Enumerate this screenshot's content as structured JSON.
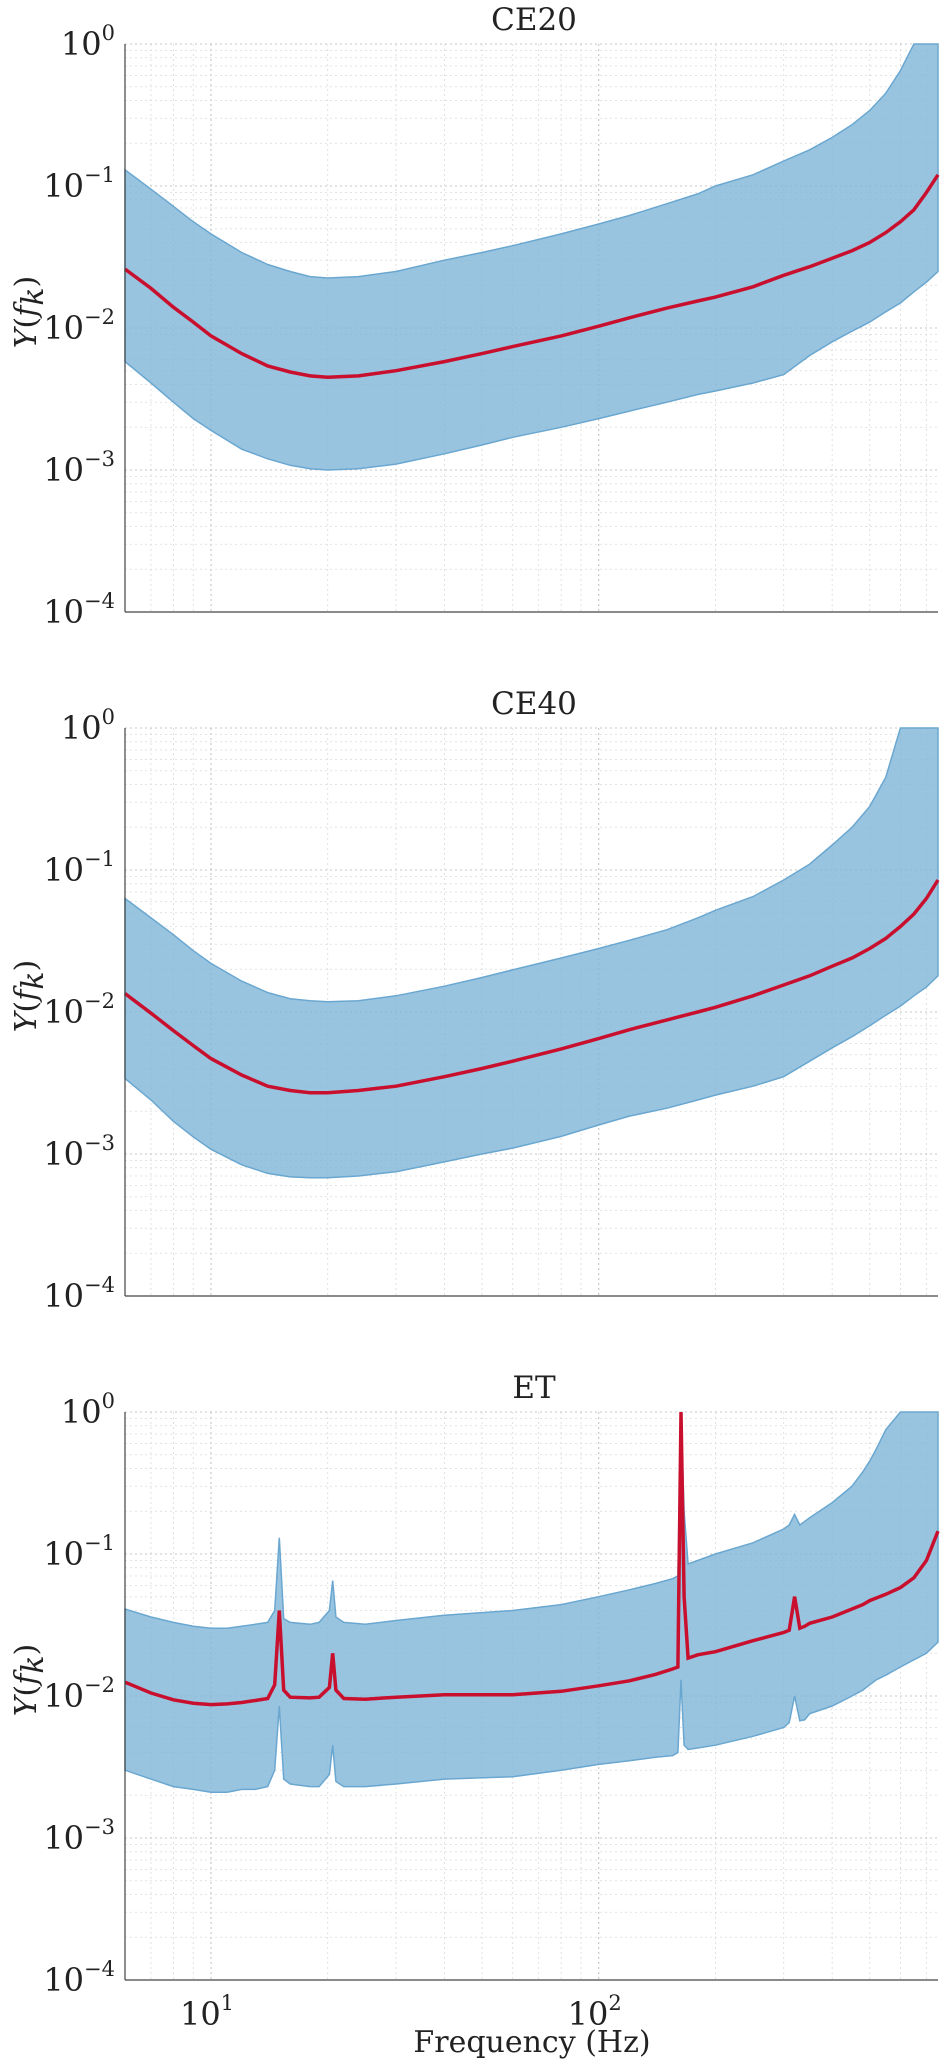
{
  "chart_data": [
    {
      "type": "area",
      "title": "CE20",
      "xlabel": "",
      "ylabel": "Y(f_k)",
      "xscale": "log",
      "yscale": "log",
      "xlim": [
        6,
        750
      ],
      "ylim": [
        0.0001,
        1
      ],
      "grid": true,
      "x_tick_labels": [],
      "y_tick_labels": [
        "10^-4",
        "10^-3",
        "10^-2",
        "10^-1",
        "10^0"
      ],
      "x": [
        6,
        7,
        8,
        9,
        10,
        12,
        14,
        16,
        18,
        20,
        24,
        30,
        40,
        50,
        60,
        80,
        100,
        120,
        150,
        180,
        200,
        250,
        300,
        350,
        400,
        450,
        500,
        550,
        600,
        650,
        700,
        750
      ],
      "series": [
        {
          "role": "median",
          "color": "#c8102e",
          "values": [
            0.026,
            0.019,
            0.014,
            0.011,
            0.0088,
            0.0066,
            0.0054,
            0.0049,
            0.0046,
            0.0045,
            0.0046,
            0.005,
            0.0058,
            0.0066,
            0.0074,
            0.0088,
            0.0103,
            0.0118,
            0.0138,
            0.0155,
            0.0165,
            0.0195,
            0.0235,
            0.027,
            0.031,
            0.035,
            0.04,
            0.047,
            0.056,
            0.068,
            0.09,
            0.12
          ]
        },
        {
          "role": "upper",
          "color": "#7fb5d8",
          "values": [
            0.13,
            0.095,
            0.072,
            0.056,
            0.046,
            0.034,
            0.028,
            0.025,
            0.023,
            0.0225,
            0.023,
            0.025,
            0.03,
            0.034,
            0.038,
            0.046,
            0.054,
            0.062,
            0.075,
            0.088,
            0.1,
            0.12,
            0.15,
            0.18,
            0.22,
            0.27,
            0.34,
            0.45,
            0.65,
            1.0,
            1.0,
            1.0
          ]
        },
        {
          "role": "lower",
          "color": "#7fb5d8",
          "values": [
            0.0058,
            0.0041,
            0.003,
            0.0023,
            0.0019,
            0.0014,
            0.0012,
            0.00108,
            0.00102,
            0.001,
            0.00102,
            0.0011,
            0.0013,
            0.0015,
            0.0017,
            0.002,
            0.0023,
            0.0026,
            0.003,
            0.0034,
            0.0036,
            0.0041,
            0.0047,
            0.0064,
            0.008,
            0.0095,
            0.011,
            0.013,
            0.015,
            0.018,
            0.021,
            0.025
          ]
        }
      ]
    },
    {
      "type": "area",
      "title": "CE40",
      "xlabel": "",
      "ylabel": "Y(f_k)",
      "xscale": "log",
      "yscale": "log",
      "xlim": [
        6,
        750
      ],
      "ylim": [
        0.0001,
        1
      ],
      "grid": true,
      "x_tick_labels": [],
      "y_tick_labels": [
        "10^-4",
        "10^-3",
        "10^-2",
        "10^-1",
        "10^0"
      ],
      "x": [
        6,
        7,
        8,
        9,
        10,
        12,
        14,
        16,
        18,
        20,
        24,
        30,
        40,
        50,
        60,
        80,
        100,
        120,
        150,
        180,
        200,
        250,
        300,
        350,
        400,
        450,
        500,
        550,
        600,
        650,
        700,
        750
      ],
      "series": [
        {
          "role": "median",
          "color": "#c8102e",
          "values": [
            0.0135,
            0.0098,
            0.0074,
            0.0058,
            0.0047,
            0.0036,
            0.003,
            0.0028,
            0.0027,
            0.0027,
            0.0028,
            0.003,
            0.0035,
            0.004,
            0.0045,
            0.0055,
            0.0065,
            0.0075,
            0.0088,
            0.01,
            0.0108,
            0.013,
            0.0155,
            0.018,
            0.021,
            0.024,
            0.028,
            0.033,
            0.04,
            0.049,
            0.063,
            0.085
          ]
        },
        {
          "role": "upper",
          "color": "#7fb5d8",
          "values": [
            0.063,
            0.046,
            0.035,
            0.027,
            0.022,
            0.0165,
            0.0137,
            0.0124,
            0.012,
            0.0118,
            0.012,
            0.013,
            0.0152,
            0.0175,
            0.0198,
            0.024,
            0.028,
            0.032,
            0.038,
            0.046,
            0.052,
            0.065,
            0.085,
            0.11,
            0.15,
            0.2,
            0.28,
            0.45,
            1.0,
            1.0,
            1.0,
            1.0
          ]
        },
        {
          "role": "lower",
          "color": "#7fb5d8",
          "values": [
            0.0034,
            0.0024,
            0.0017,
            0.00132,
            0.00108,
            0.00084,
            0.00073,
            0.00069,
            0.00068,
            0.00068,
            0.0007,
            0.00075,
            0.00088,
            0.001,
            0.0011,
            0.00133,
            0.0016,
            0.00185,
            0.0021,
            0.0024,
            0.0026,
            0.003,
            0.0035,
            0.0045,
            0.0056,
            0.0067,
            0.008,
            0.0095,
            0.011,
            0.013,
            0.015,
            0.018
          ]
        }
      ]
    },
    {
      "type": "area",
      "title": "ET",
      "xlabel": "Frequency (Hz)",
      "ylabel": "Y(f_k)",
      "xscale": "log",
      "yscale": "log",
      "xlim": [
        6,
        750
      ],
      "ylim": [
        0.0001,
        1
      ],
      "grid": true,
      "x_tick_labels": [
        "10^1",
        "10^2"
      ],
      "y_tick_labels": [
        "10^-4",
        "10^-3",
        "10^-2",
        "10^-1",
        "10^0"
      ],
      "x": [
        6,
        7,
        8,
        9,
        10,
        11,
        12,
        13,
        14,
        14.6,
        15.0,
        15.4,
        16,
        18,
        19,
        20.2,
        20.6,
        21.0,
        22,
        25,
        30,
        40,
        60,
        80,
        100,
        120,
        140,
        155,
        160,
        163,
        166,
        170,
        180,
        200,
        250,
        300,
        310,
        320,
        330,
        340,
        350,
        400,
        450,
        480,
        500,
        520,
        550,
        600,
        650,
        700,
        750
      ],
      "series": [
        {
          "role": "median",
          "color": "#c8102e",
          "values": [
            0.0125,
            0.0105,
            0.0094,
            0.0089,
            0.0087,
            0.0088,
            0.009,
            0.0093,
            0.0096,
            0.012,
            0.04,
            0.011,
            0.0098,
            0.0097,
            0.0098,
            0.0115,
            0.02,
            0.011,
            0.0096,
            0.0095,
            0.0098,
            0.0102,
            0.0102,
            0.0108,
            0.0118,
            0.0128,
            0.0142,
            0.0155,
            0.016,
            1.0,
            0.05,
            0.0185,
            0.0195,
            0.0205,
            0.0245,
            0.028,
            0.029,
            0.05,
            0.03,
            0.031,
            0.0325,
            0.036,
            0.041,
            0.044,
            0.047,
            0.049,
            0.052,
            0.058,
            0.068,
            0.09,
            0.145
          ]
        },
        {
          "role": "upper",
          "color": "#7fb5d8",
          "values": [
            0.041,
            0.036,
            0.033,
            0.031,
            0.03,
            0.03,
            0.031,
            0.032,
            0.033,
            0.04,
            0.13,
            0.035,
            0.033,
            0.032,
            0.033,
            0.04,
            0.065,
            0.036,
            0.033,
            0.032,
            0.034,
            0.037,
            0.04,
            0.044,
            0.05,
            0.056,
            0.062,
            0.067,
            0.07,
            1.0,
            0.2,
            0.085,
            0.09,
            0.1,
            0.12,
            0.15,
            0.16,
            0.19,
            0.16,
            0.17,
            0.18,
            0.23,
            0.3,
            0.38,
            0.45,
            0.55,
            0.75,
            1.0,
            1.0,
            1.0,
            1.0
          ]
        },
        {
          "role": "lower",
          "color": "#7fb5d8",
          "values": [
            0.003,
            0.0026,
            0.0023,
            0.0022,
            0.0021,
            0.0021,
            0.0022,
            0.0022,
            0.0023,
            0.003,
            0.0085,
            0.0026,
            0.0024,
            0.0023,
            0.0023,
            0.0028,
            0.0045,
            0.0025,
            0.0023,
            0.0023,
            0.0024,
            0.0026,
            0.0027,
            0.003,
            0.0033,
            0.0035,
            0.0037,
            0.0038,
            0.004,
            0.013,
            0.0045,
            0.0042,
            0.0043,
            0.0045,
            0.0052,
            0.006,
            0.0065,
            0.01,
            0.0067,
            0.0068,
            0.0075,
            0.0085,
            0.01,
            0.011,
            0.012,
            0.013,
            0.014,
            0.016,
            0.018,
            0.02,
            0.024
          ]
        }
      ]
    }
  ]
}
